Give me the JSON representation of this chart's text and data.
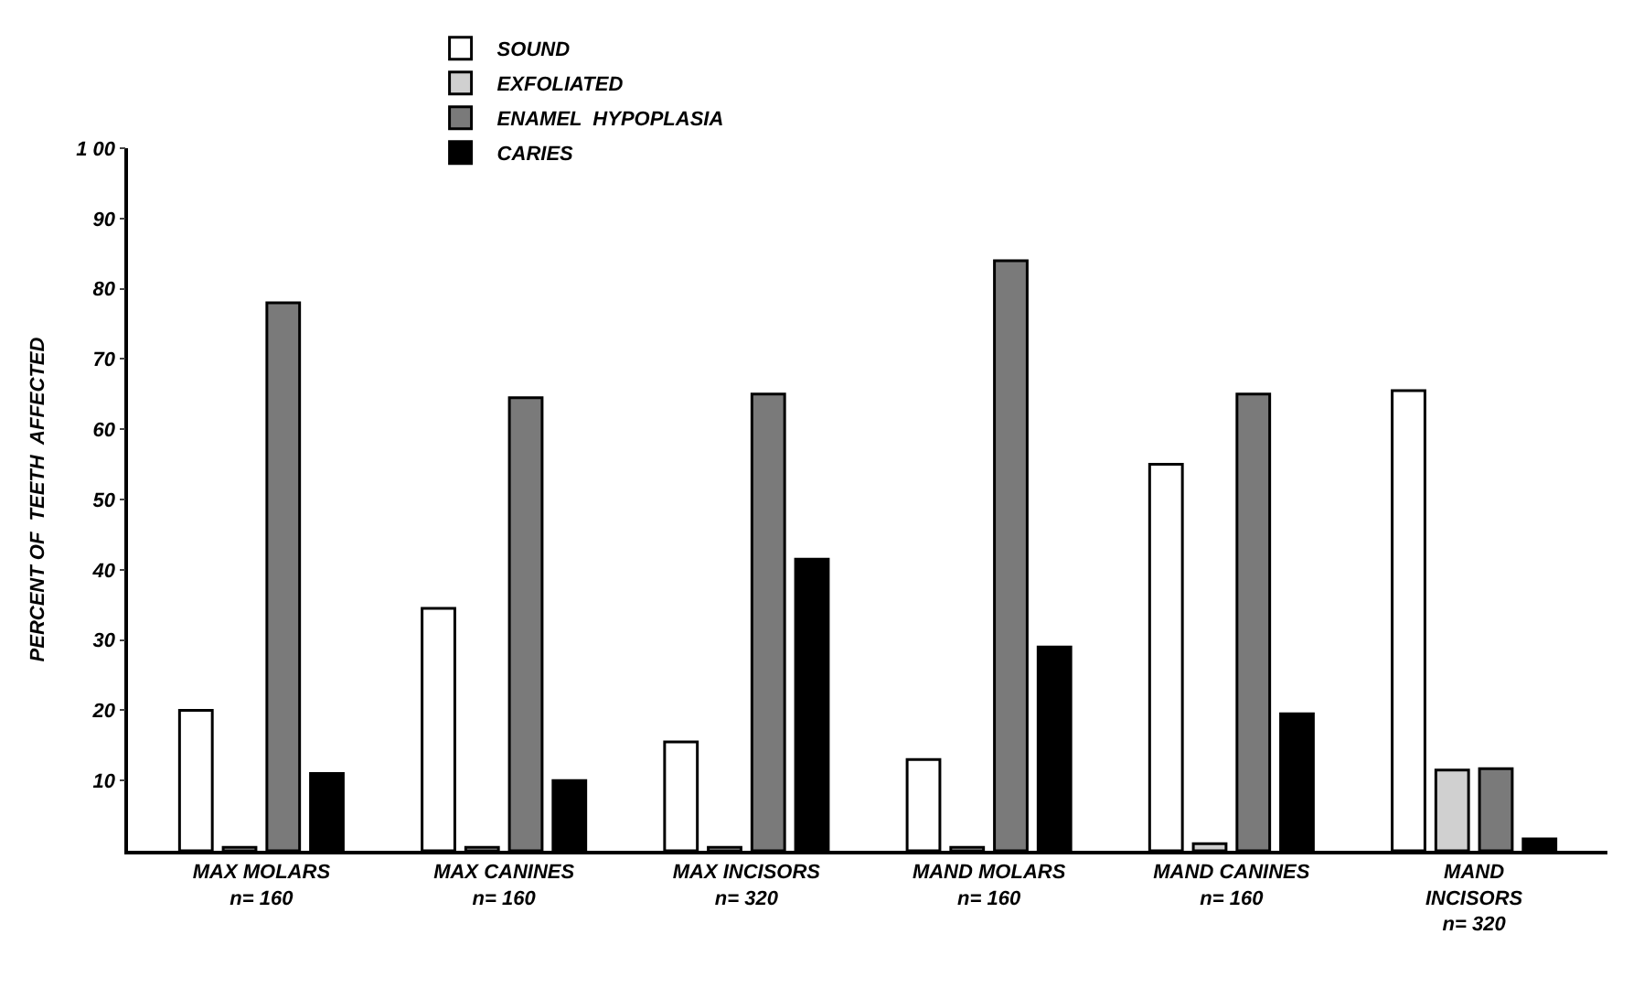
{
  "chart_data": {
    "type": "bar",
    "ylabel": "PERCENT OF  TEETH  AFFECTED",
    "categories": [
      "MAX MOLARS\nn= 160",
      "MAX CANINES\nn= 160",
      "MAX INCISORS\nn= 320",
      "MAND MOLARS\nn= 160",
      "MAND CANINES\nn= 160",
      "MAND\nINCISORS\nn= 320"
    ],
    "series": [
      {
        "name": "SOUND",
        "color": "#ffffff",
        "values": [
          20,
          34.5,
          15.5,
          13,
          55,
          65.5
        ]
      },
      {
        "name": "EXFOLIATED",
        "color": "#d0d0d0",
        "values": [
          0.5,
          0.5,
          0.5,
          0.5,
          1,
          11.5
        ]
      },
      {
        "name": "ENAMEL  HYPOPLASIA",
        "color": "#7a7a7a",
        "values": [
          78,
          64.5,
          65,
          84,
          65,
          11.7
        ]
      },
      {
        "name": "CARIES",
        "color": "#000000",
        "values": [
          11,
          10,
          41.5,
          29,
          19.5,
          1.7
        ]
      }
    ],
    "ylim": [
      0,
      100
    ],
    "yticks": [
      10,
      20,
      30,
      40,
      50,
      60,
      70,
      80,
      90,
      {
        "value": 100,
        "label": "1 00"
      }
    ],
    "legend": "top"
  }
}
